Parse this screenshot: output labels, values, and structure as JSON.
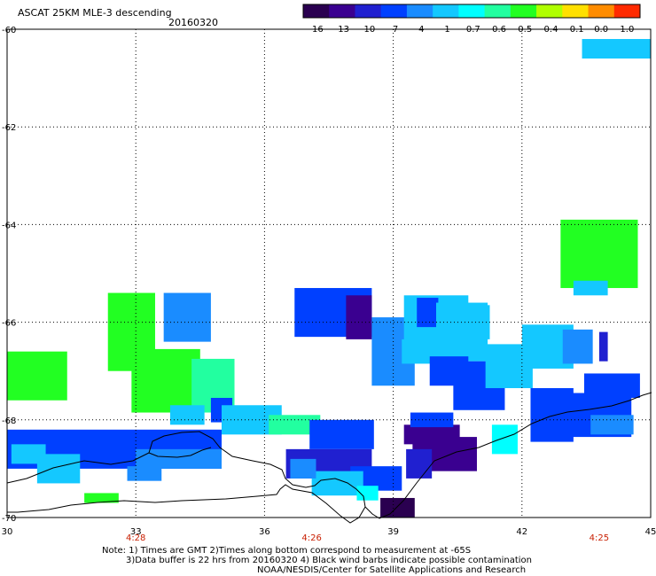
{
  "header": {
    "title": "ASCAT 25KM MLE-3 descending",
    "date": "20160320"
  },
  "colorbar": {
    "tick_labels": [
      "-16",
      "-13",
      "-10",
      "-7",
      "-4",
      "-1",
      "-0.7",
      "-0.6",
      "-0.5",
      "-0.4",
      "-0.1",
      "0.0",
      "1.0"
    ],
    "colors": [
      "#2a0050",
      "#3a0090",
      "#2020d0",
      "#0040ff",
      "#1a8cff",
      "#14c8ff",
      "#00ffff",
      "#22ffa0",
      "#22ff22",
      "#b0ff00",
      "#ffe000",
      "#ff8c00",
      "#ff2a00"
    ]
  },
  "chart_data": {
    "type": "heatmap",
    "xlim": [
      30,
      45
    ],
    "ylim": [
      -70,
      -60
    ],
    "x_ticks": [
      "30",
      "33",
      "36",
      "39",
      "42",
      "45"
    ],
    "y_ticks": [
      "-60",
      "-62",
      "-64",
      "-66",
      "-68",
      "-70"
    ],
    "time_labels": [
      {
        "lon": 33,
        "text": "4:28"
      },
      {
        "lon": 37.1,
        "text": "4:26"
      },
      {
        "lon": 43.8,
        "text": "4:25"
      }
    ],
    "grid": "dotted",
    "colorbar_position": "top-right",
    "patches": [
      {
        "lon": 44.2,
        "lat": -60.4,
        "w": 1.6,
        "h": 0.4,
        "v": -1
      },
      {
        "lon": 43.8,
        "lat": -64.6,
        "w": 1.8,
        "h": 1.4,
        "v": -0.5
      },
      {
        "lon": 43.6,
        "lat": -65.3,
        "w": 0.8,
        "h": 0.3,
        "v": -1
      },
      {
        "lon": 30.7,
        "lat": -67.1,
        "w": 1.4,
        "h": 1.0,
        "v": -0.5
      },
      {
        "lon": 32.9,
        "lat": -66.2,
        "w": 1.1,
        "h": 1.6,
        "v": -0.5
      },
      {
        "lon": 34.2,
        "lat": -65.9,
        "w": 1.1,
        "h": 1.0,
        "v": -4
      },
      {
        "lon": 33.7,
        "lat": -67.2,
        "w": 1.6,
        "h": 1.3,
        "v": -0.5
      },
      {
        "lon": 34.8,
        "lat": -67.3,
        "w": 1.0,
        "h": 1.1,
        "v": -0.6
      },
      {
        "lon": 35.0,
        "lat": -67.8,
        "w": 0.5,
        "h": 0.5,
        "v": -7
      },
      {
        "lon": 37.6,
        "lat": -65.8,
        "w": 1.8,
        "h": 1.0,
        "v": -7
      },
      {
        "lon": 38.2,
        "lat": -65.9,
        "w": 0.6,
        "h": 0.9,
        "v": -13
      },
      {
        "lon": 39.0,
        "lat": -66.6,
        "w": 1.0,
        "h": 1.4,
        "v": -4
      },
      {
        "lon": 39.7,
        "lat": -66.6,
        "w": 1.0,
        "h": 0.5,
        "v": -1
      },
      {
        "lon": 40.0,
        "lat": -66.0,
        "w": 1.5,
        "h": 1.1,
        "v": -1
      },
      {
        "lon": 39.8,
        "lat": -65.8,
        "w": 0.5,
        "h": 0.6,
        "v": -7
      },
      {
        "lon": 40.6,
        "lat": -66.2,
        "w": 1.2,
        "h": 1.2,
        "v": -1
      },
      {
        "lon": 41.0,
        "lat": -67.3,
        "w": 1.2,
        "h": 1.0,
        "v": -7
      },
      {
        "lon": 41.7,
        "lat": -66.9,
        "w": 1.1,
        "h": 0.9,
        "v": -1
      },
      {
        "lon": 42.6,
        "lat": -66.5,
        "w": 1.2,
        "h": 0.9,
        "v": -1
      },
      {
        "lon": 43.3,
        "lat": -66.5,
        "w": 0.7,
        "h": 0.7,
        "v": -4
      },
      {
        "lon": 43.9,
        "lat": -66.5,
        "w": 0.2,
        "h": 0.6,
        "v": -10
      },
      {
        "lon": 44.1,
        "lat": -67.3,
        "w": 1.3,
        "h": 0.5,
        "v": -7
      },
      {
        "lon": 43.7,
        "lat": -67.9,
        "w": 1.7,
        "h": 0.9,
        "v": -7
      },
      {
        "lon": 42.7,
        "lat": -67.9,
        "w": 1.0,
        "h": 1.1,
        "v": -7
      },
      {
        "lon": 44.1,
        "lat": -68.1,
        "w": 1.0,
        "h": 0.4,
        "v": -4
      },
      {
        "lon": 32.5,
        "lat": -68.6,
        "w": 5.0,
        "h": 0.8,
        "v": -7
      },
      {
        "lon": 34.0,
        "lat": -68.8,
        "w": 2.0,
        "h": 0.4,
        "v": -4
      },
      {
        "lon": 35.7,
        "lat": -68.0,
        "w": 1.4,
        "h": 0.6,
        "v": -1
      },
      {
        "lon": 36.7,
        "lat": -68.1,
        "w": 1.2,
        "h": 0.4,
        "v": -0.6
      },
      {
        "lon": 37.8,
        "lat": -68.3,
        "w": 1.5,
        "h": 0.6,
        "v": -7
      },
      {
        "lon": 37.5,
        "lat": -68.9,
        "w": 2.0,
        "h": 0.6,
        "v": -10
      },
      {
        "lon": 38.6,
        "lat": -69.2,
        "w": 1.2,
        "h": 0.5,
        "v": -7
      },
      {
        "lon": 37.7,
        "lat": -69.3,
        "w": 1.2,
        "h": 0.5,
        "v": -1
      },
      {
        "lon": 38.4,
        "lat": -69.5,
        "w": 0.5,
        "h": 0.3,
        "v": -0.7
      },
      {
        "lon": 39.1,
        "lat": -69.8,
        "w": 0.8,
        "h": 0.4,
        "v": -16
      },
      {
        "lon": 39.9,
        "lat": -68.3,
        "w": 1.3,
        "h": 0.4,
        "v": -13
      },
      {
        "lon": 40.2,
        "lat": -68.7,
        "w": 1.5,
        "h": 0.7,
        "v": -13
      },
      {
        "lon": 39.6,
        "lat": -68.9,
        "w": 0.6,
        "h": 0.6,
        "v": -10
      },
      {
        "lon": 41.6,
        "lat": -68.4,
        "w": 0.6,
        "h": 0.6,
        "v": -0.7
      },
      {
        "lon": 39.9,
        "lat": -68.0,
        "w": 1.0,
        "h": 0.3,
        "v": -7
      },
      {
        "lon": 40.3,
        "lat": -67.0,
        "w": 0.9,
        "h": 0.6,
        "v": -7
      },
      {
        "lon": 31.2,
        "lat": -69.0,
        "w": 1.0,
        "h": 0.6,
        "v": -1
      },
      {
        "lon": 30.5,
        "lat": -68.7,
        "w": 0.8,
        "h": 0.4,
        "v": -1
      },
      {
        "lon": 32.2,
        "lat": -69.6,
        "w": 0.8,
        "h": 0.2,
        "v": -0.5
      },
      {
        "lon": 33.2,
        "lat": -69.1,
        "w": 0.8,
        "h": 0.3,
        "v": -4
      },
      {
        "lon": 34.2,
        "lat": -67.9,
        "w": 0.8,
        "h": 0.4,
        "v": -1
      },
      {
        "lon": 36.9,
        "lat": -69.0,
        "w": 0.6,
        "h": 0.4,
        "v": -4
      },
      {
        "lon": 40.8,
        "lat": -66.0,
        "w": 0.9,
        "h": 0.7,
        "v": -1
      }
    ]
  },
  "footer": {
    "line1": "Note: 1) Times are GMT 2)Times along bottom correspond to measurement at -65S",
    "line2": "3)Data buffer is 22 hrs from 20160320 4) Black wind barbs indicate possible contamination",
    "line3": "NOAA/NESDIS/Center for Satellite Applications and Research"
  }
}
